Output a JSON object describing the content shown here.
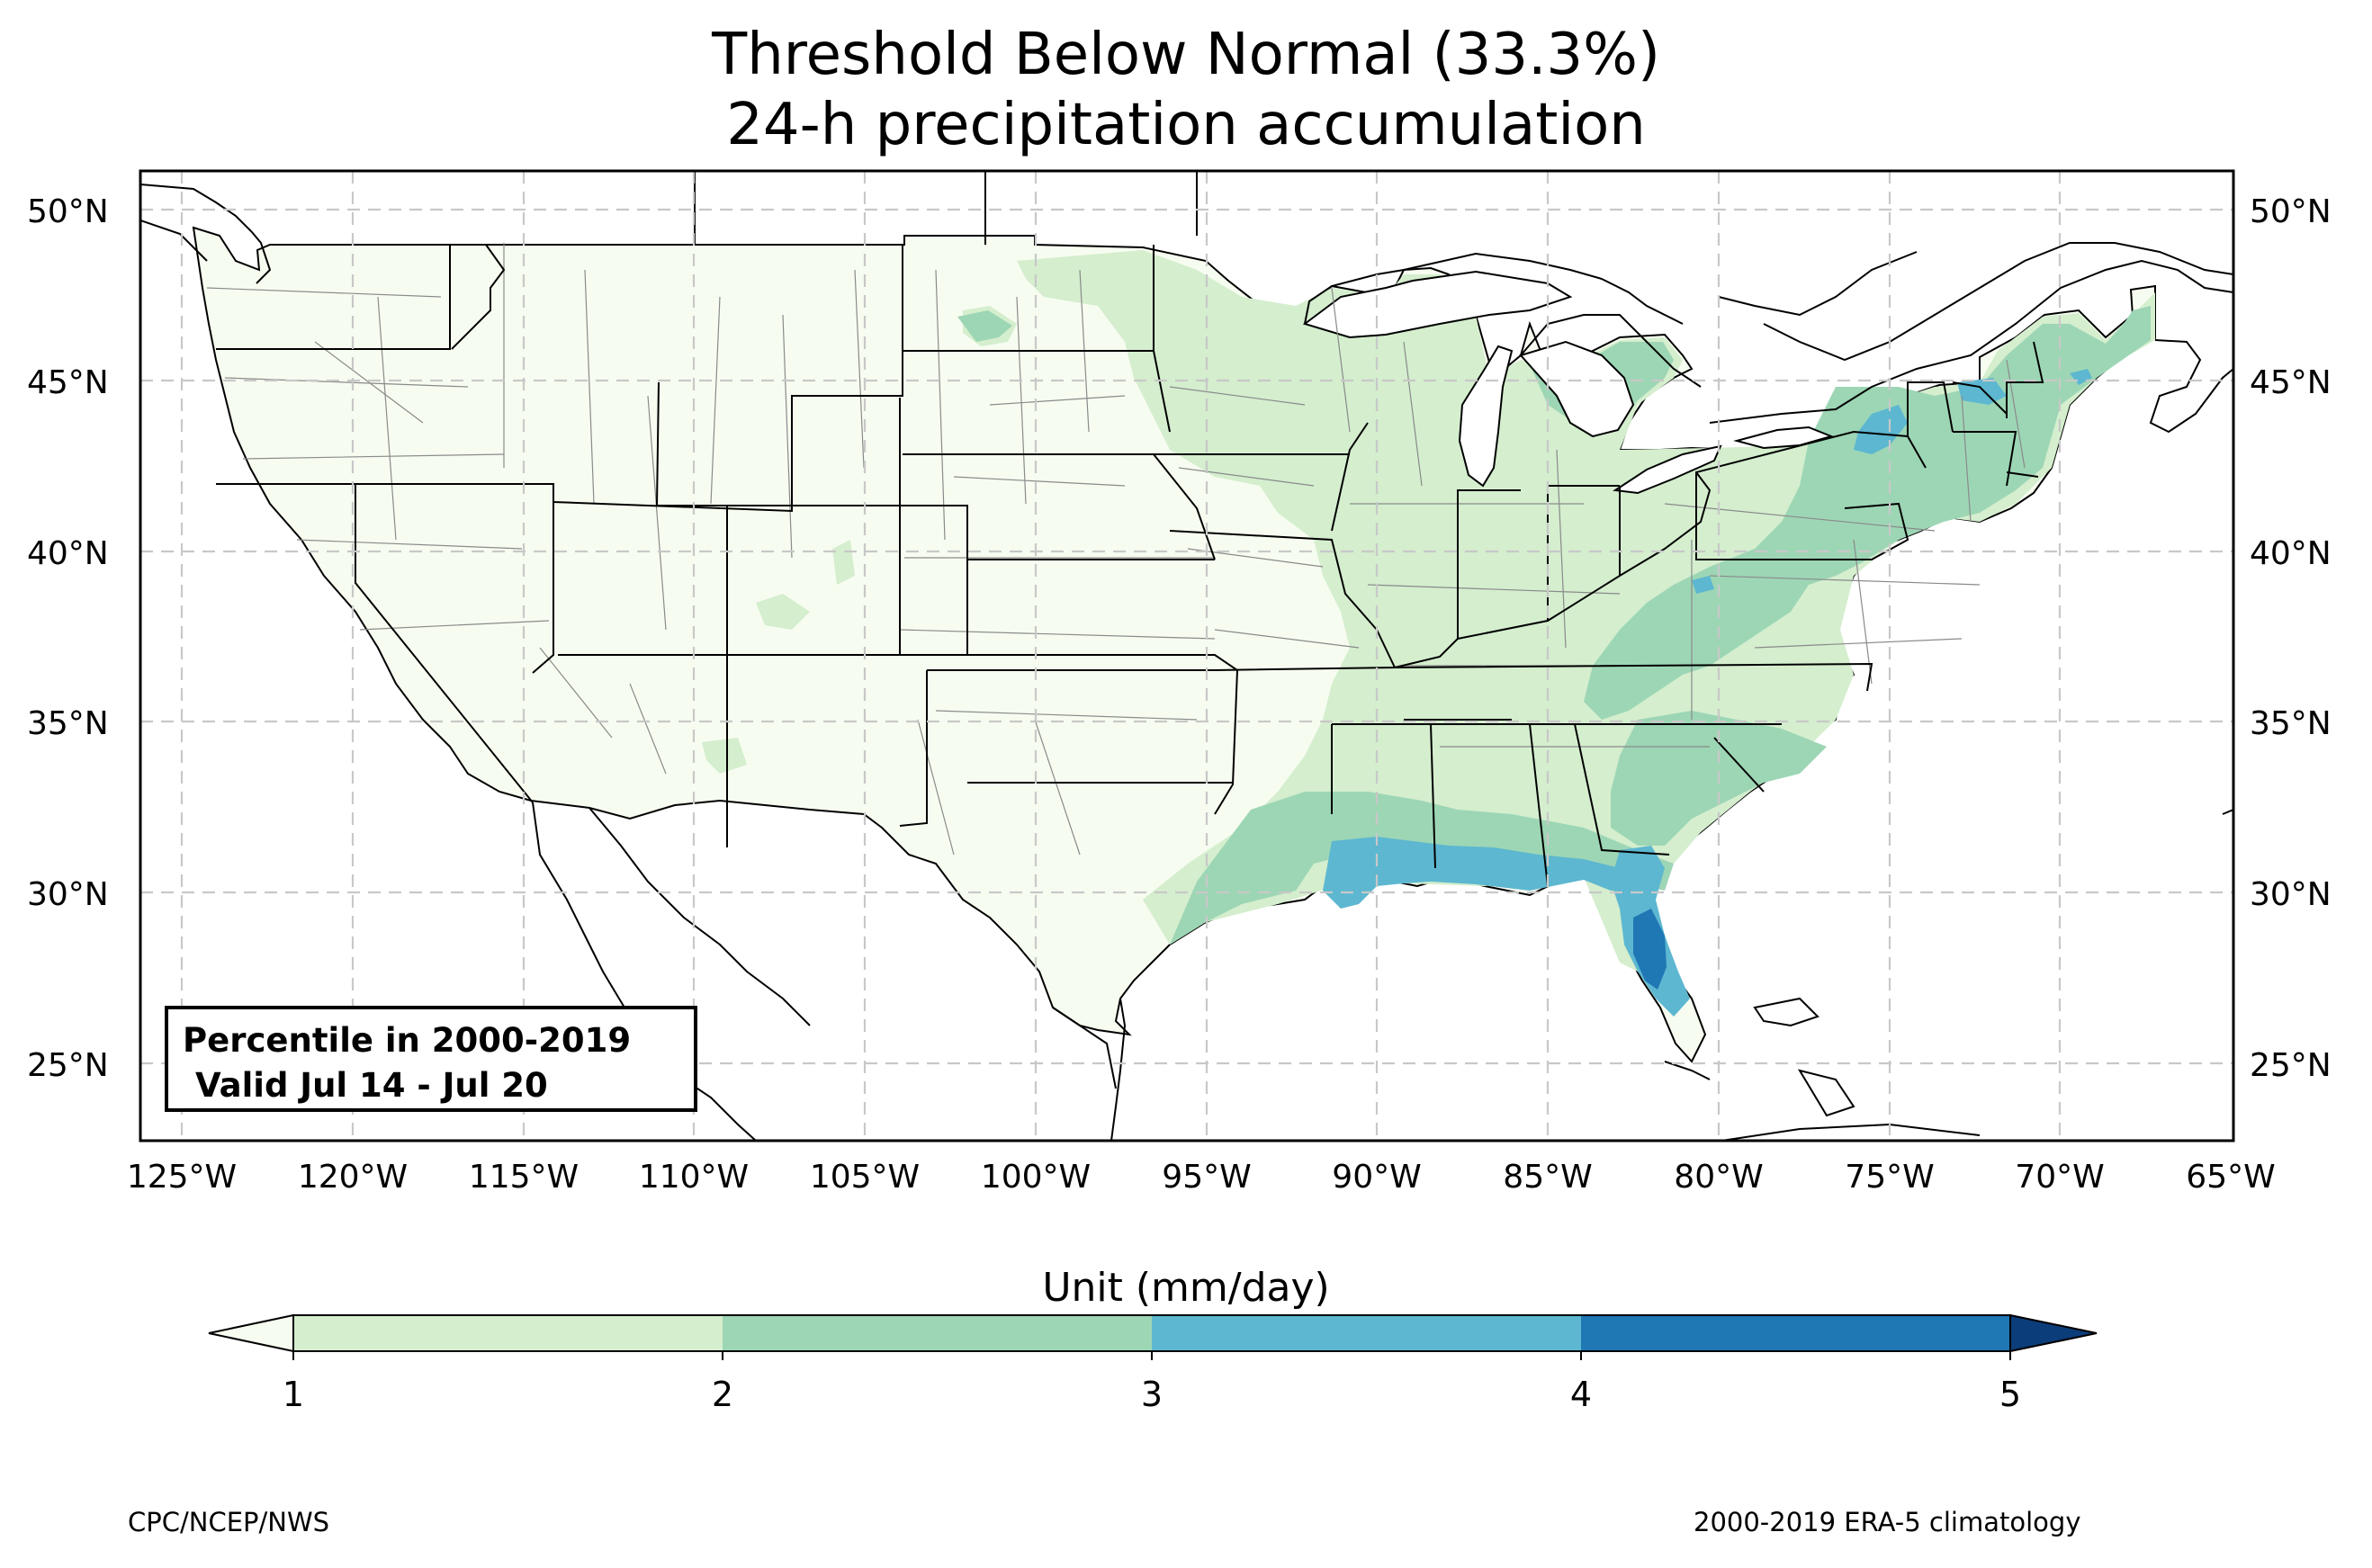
{
  "title": {
    "line1": "Threshold Below Normal (33.3%)",
    "line2": "24-h precipitation accumulation"
  },
  "info_box": {
    "line1": "Percentile in 2000-2019",
    "line2": "Valid Jul 14 - Jul 20"
  },
  "map": {
    "lon_range": [
      -126.2,
      -64.9
    ],
    "lat_range": [
      22.8,
      51.2
    ],
    "lon_ticks": [
      "125°W",
      "120°W",
      "115°W",
      "110°W",
      "105°W",
      "100°W",
      "95°W",
      "90°W",
      "85°W",
      "80°W",
      "75°W",
      "70°W",
      "65°W"
    ],
    "lat_ticks": [
      "50°N",
      "45°N",
      "40°N",
      "35°N",
      "30°N",
      "25°N"
    ],
    "gridlines": true
  },
  "colorbar": {
    "title": "Unit (mm/day)",
    "ticks": [
      "1",
      "2",
      "3",
      "4",
      "5"
    ],
    "colors": [
      "#d4eece",
      "#9dd6b5",
      "#5db7d0",
      "#1f77b4",
      "#0b3d7a"
    ],
    "extend": "both",
    "under_color": "#f7fcf0"
  },
  "footer": {
    "left": "CPC/NCEP/NWS",
    "right": "2000-2019 ERA-5 climatology"
  }
}
